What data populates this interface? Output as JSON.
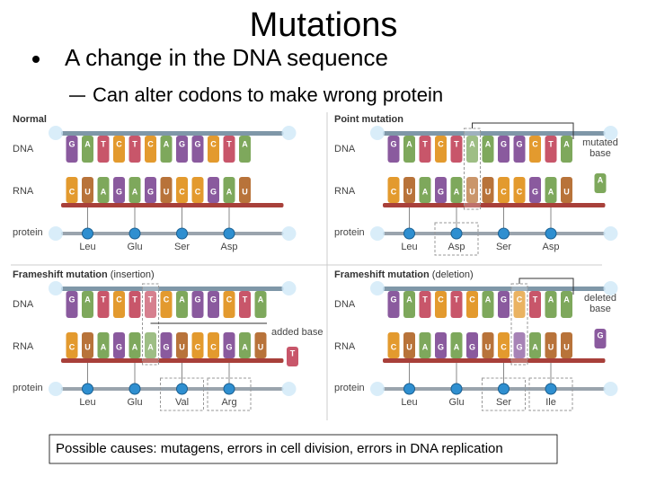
{
  "title": "Mutations",
  "bullet": "A change in the DNA sequence",
  "sub_bullet": "Can alter codons to make wrong protein",
  "panels": [
    {
      "title": "Normal",
      "rows": [
        "DNA",
        "RNA",
        "protein"
      ],
      "dna": [
        "G",
        "A",
        "T",
        "C",
        "T",
        "C",
        "A",
        "G",
        "G",
        "C",
        "T",
        "A"
      ],
      "rna": [
        "C",
        "U",
        "A",
        "G",
        "A",
        "G",
        "U",
        "C",
        "C",
        "G",
        "A",
        "U"
      ],
      "protein": [
        "Leu",
        "Glu",
        "Ser",
        "Asp"
      ]
    },
    {
      "title": "Point mutation",
      "rows": [
        "DNA",
        "RNA",
        "protein"
      ],
      "dna": [
        "G",
        "A",
        "T",
        "C",
        "T",
        "A",
        "A",
        "G",
        "G",
        "C",
        "T",
        "A"
      ],
      "rna": [
        "C",
        "U",
        "A",
        "G",
        "A",
        "U",
        "U",
        "C",
        "C",
        "G",
        "A",
        "U"
      ],
      "protein": [
        "Leu",
        "Asp",
        "Ser",
        "Asp"
      ],
      "annotation": "mutated base",
      "extra_base": "A"
    },
    {
      "title": "Frameshift mutation",
      "subtitle": "(insertion)",
      "rows": [
        "DNA",
        "RNA",
        "protein"
      ],
      "dna": [
        "G",
        "A",
        "T",
        "C",
        "T",
        "T",
        "C",
        "A",
        "G",
        "G",
        "C",
        "T",
        "A"
      ],
      "rna": [
        "C",
        "U",
        "A",
        "G",
        "A",
        "A",
        "G",
        "U",
        "C",
        "C",
        "G",
        "A",
        "U"
      ],
      "protein": [
        "Leu",
        "Glu",
        "Val",
        "Arg"
      ],
      "annotation": "added base",
      "extra_base": "T"
    },
    {
      "title": "Frameshift mutation",
      "subtitle": "(deletion)",
      "rows": [
        "DNA",
        "RNA",
        "protein"
      ],
      "dna": [
        "G",
        "A",
        "T",
        "C",
        "T",
        "C",
        "A",
        "G",
        "C",
        "T",
        "A",
        "A"
      ],
      "rna": [
        "C",
        "U",
        "A",
        "G",
        "A",
        "G",
        "U",
        "C",
        "G",
        "A",
        "U",
        "U"
      ],
      "protein": [
        "Leu",
        "Glu",
        "Ser",
        "Ile"
      ],
      "annotation": "deleted base",
      "extra_base": "G"
    }
  ],
  "caption": "Possible causes: mutagens, errors in cell division, errors in DNA replication"
}
